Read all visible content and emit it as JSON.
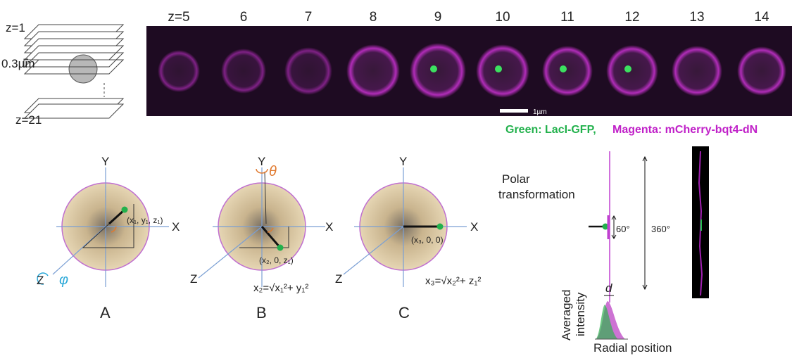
{
  "stack": {
    "top": "z=1",
    "spacing": "0.3µm",
    "bottom": "z=21"
  },
  "slices": {
    "labels": [
      "z=5",
      "6",
      "7",
      "8",
      "9",
      "10",
      "11",
      "12",
      "13",
      "14"
    ],
    "scale_bar": "1µm"
  },
  "legend": {
    "green": "Green: LacI-GFP,",
    "magenta": "Magenta: mCherry-bqt4-dN"
  },
  "panels": [
    {
      "label": "A",
      "x_axis": "X",
      "y_axis": "Y",
      "z_axis": "Z",
      "angle": "φ",
      "point": "(x₁, y₁, z₁)"
    },
    {
      "label": "B",
      "x_axis": "X",
      "y_axis": "Y",
      "z_axis": "Z",
      "angle": "θ",
      "point": "(x₂, 0, z₁)",
      "formula": "x₂=√x₁²+ y₁²"
    },
    {
      "label": "C",
      "x_axis": "X",
      "y_axis": "Y",
      "z_axis": "Z",
      "point": "(x₃, 0, 0)",
      "formula": "x₃=√x₂²+ z₁²"
    }
  ],
  "polar": {
    "title": [
      "Polar",
      "transformation"
    ],
    "small_angle": "60°",
    "full_angle": "360°",
    "y_axis": [
      "Averaged",
      "intensity"
    ],
    "x_axis": "Radial position",
    "distance": "d"
  }
}
